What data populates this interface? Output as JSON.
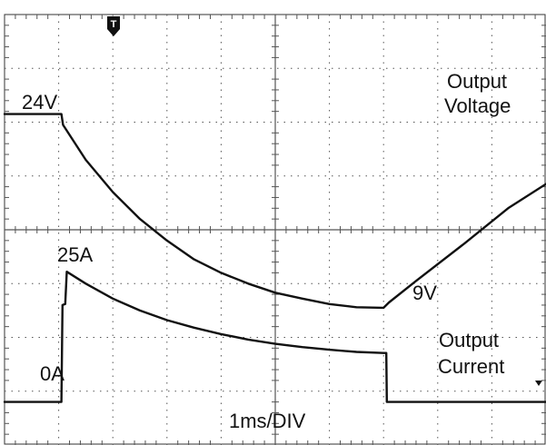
{
  "chart_data": {
    "type": "line",
    "grid": true,
    "x_divisions": 10,
    "y_divisions": 8,
    "timebase_label": "1ms/DIV",
    "trigger_marker": "T",
    "series": [
      {
        "name": "Output Voltage",
        "label_lines": [
          "Output",
          "Voltage"
        ],
        "color": "#111111",
        "start_level_label": "24V",
        "min_level_label": "9V",
        "points": [
          [
            0.0,
            6.15
          ],
          [
            0.5,
            6.15
          ],
          [
            1.05,
            6.15
          ],
          [
            1.08,
            5.95
          ],
          [
            1.5,
            5.3
          ],
          [
            2.0,
            4.7
          ],
          [
            2.5,
            4.2
          ],
          [
            3.0,
            3.8
          ],
          [
            3.5,
            3.45
          ],
          [
            4.0,
            3.2
          ],
          [
            4.5,
            3.0
          ],
          [
            5.0,
            2.83
          ],
          [
            5.5,
            2.72
          ],
          [
            6.0,
            2.62
          ],
          [
            6.5,
            2.56
          ],
          [
            7.0,
            2.55
          ],
          [
            7.1,
            2.65
          ],
          [
            7.6,
            3.05
          ],
          [
            8.5,
            3.75
          ],
          [
            9.3,
            4.4
          ],
          [
            10.0,
            4.85
          ]
        ]
      },
      {
        "name": "Output Current",
        "label_lines": [
          "Output",
          "Current"
        ],
        "color": "#111111",
        "peak_level_label": "25A",
        "zero_level_label": "0A",
        "points": [
          [
            0.0,
            0.8
          ],
          [
            1.05,
            0.8
          ],
          [
            1.07,
            2.6
          ],
          [
            1.12,
            2.62
          ],
          [
            1.15,
            3.22
          ],
          [
            1.5,
            3.0
          ],
          [
            2.0,
            2.72
          ],
          [
            2.5,
            2.5
          ],
          [
            3.0,
            2.32
          ],
          [
            3.5,
            2.18
          ],
          [
            4.0,
            2.06
          ],
          [
            4.5,
            1.96
          ],
          [
            5.0,
            1.88
          ],
          [
            5.5,
            1.82
          ],
          [
            6.0,
            1.77
          ],
          [
            6.5,
            1.73
          ],
          [
            7.0,
            1.71
          ],
          [
            7.05,
            1.71
          ],
          [
            7.06,
            0.8
          ],
          [
            10.0,
            0.8
          ]
        ]
      }
    ]
  }
}
